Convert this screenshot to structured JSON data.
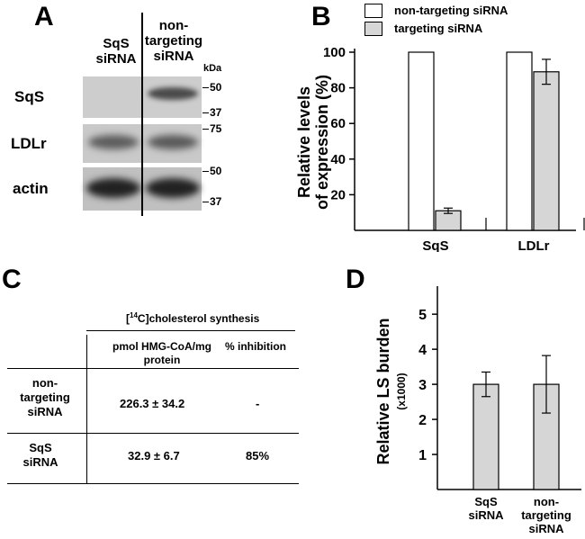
{
  "panels": {
    "a": {
      "letter": "A",
      "lanes": [
        "SqS\nsiRNA",
        "non-\ntargeting\nsiRNA"
      ],
      "kda": "kDa",
      "rows": [
        {
          "label": "SqS",
          "markers": [
            "50",
            "37"
          ]
        },
        {
          "label": "LDLr",
          "markers": [
            "75"
          ]
        },
        {
          "label": "actin",
          "markers": [
            "50",
            "37"
          ]
        }
      ]
    },
    "b": {
      "letter": "B",
      "legend": [
        "non-targeting siRNA",
        "targeting siRNA"
      ],
      "ylabel_line1": "Relative levels",
      "ylabel_line2": "of expression (%)"
    },
    "c": {
      "letter": "C",
      "header_pre": "[",
      "header_sup": "14",
      "header_post": "C]cholesterol synthesis",
      "col1": "pmol HMG-CoA/mg\nprotein",
      "col2": "% inhibition",
      "rows": [
        {
          "label": "non-\ntargeting\nsiRNA",
          "value": "226.3 ± 34.2",
          "inhibition": "-"
        },
        {
          "label": "SqS\nsiRNA",
          "value": "32.9  ± 6.7",
          "inhibition": "85%"
        }
      ]
    },
    "d": {
      "letter": "D",
      "ylabel": "Relative LS burden",
      "ysub": "(x1000)"
    }
  },
  "chart_data": [
    {
      "type": "bar",
      "title": "",
      "ylabel": "Relative levels of expression (%)",
      "categories": [
        "SqS",
        "LDLr"
      ],
      "ylim": [
        0,
        100
      ],
      "yticks": [
        20,
        40,
        60,
        80,
        100
      ],
      "series": [
        {
          "name": "non-targeting siRNA",
          "color": "#ffffff",
          "values": [
            100,
            100
          ]
        },
        {
          "name": "targeting siRNA",
          "color": "#d6d6d6",
          "values": [
            11,
            89
          ],
          "errors": [
            1.5,
            7
          ]
        }
      ]
    },
    {
      "type": "bar",
      "title": "",
      "ylabel": "Relative LS burden (x1000)",
      "categories": [
        "SqS\nsiRNA",
        "non-\ntargeting\nsiRNA"
      ],
      "ylim": [
        0,
        5.8
      ],
      "yticks": [
        1,
        2,
        3,
        4,
        5
      ],
      "color": "#d6d6d6",
      "values": [
        3.0,
        3.0
      ],
      "errors": [
        0.35,
        0.82
      ]
    }
  ]
}
